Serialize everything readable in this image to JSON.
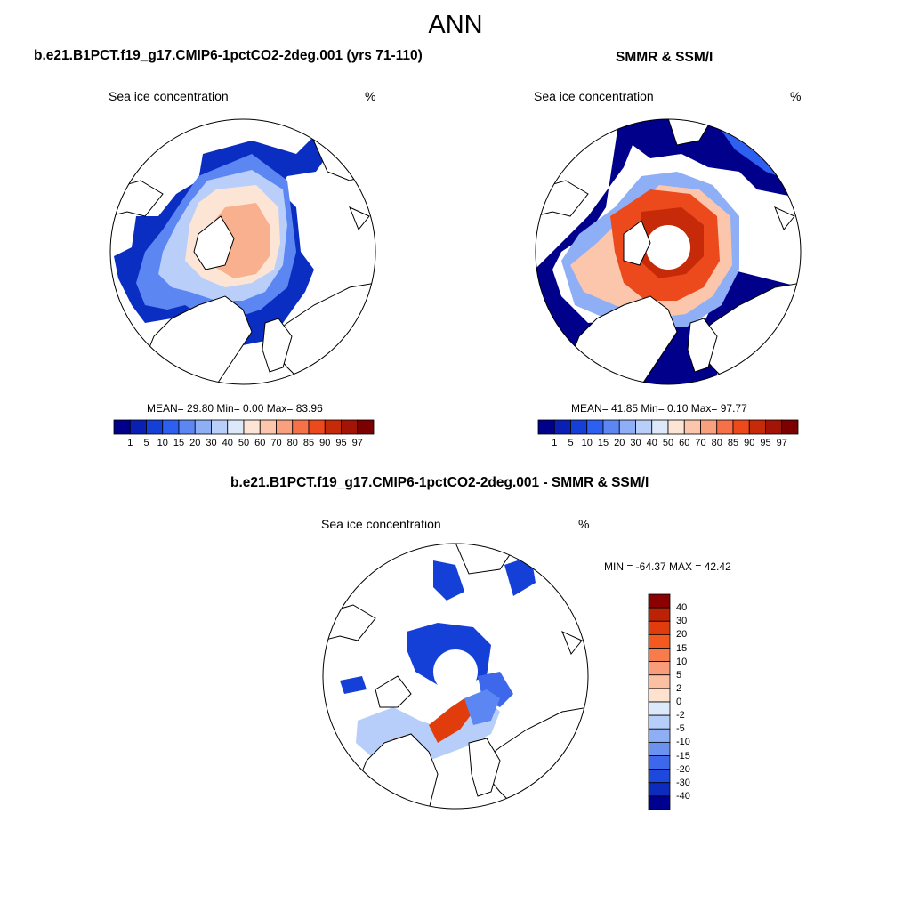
{
  "figure": {
    "title": "ANN"
  },
  "panels": [
    {
      "title": "b.e21.B1PCT.f19_g17.CMIP6-1pctCO2-2deg.001 (yrs 71-110)",
      "variable": "Sea ice concentration",
      "units": "%",
      "stats": "MEAN=  29.80  Min=   0.00  Max=  83.96"
    },
    {
      "title": "SMMR & SSM/I",
      "variable": "Sea ice concentration",
      "units": "%",
      "stats": "MEAN=  41.85  Min=   0.10  Max=  97.77"
    },
    {
      "title": "b.e21.B1PCT.f19_g17.CMIP6-1pctCO2-2deg.001 - SMMR & SSM/I",
      "variable": "Sea ice concentration",
      "units": "%",
      "stats": "MIN = -64.37 MAX =  42.42"
    }
  ],
  "colorbar_h": {
    "levels": [
      "1",
      "5",
      "10",
      "15",
      "20",
      "30",
      "40",
      "50",
      "60",
      "70",
      "80",
      "85",
      "90",
      "95",
      "97"
    ],
    "colors": [
      "#00008b",
      "#0a1fb4",
      "#1540d8",
      "#2d5ff0",
      "#5c86f2",
      "#8eaef5",
      "#b9cff9",
      "#dde9fb",
      "#fde5d6",
      "#fbc6ab",
      "#f9a07e",
      "#f77148",
      "#ec4a1c",
      "#c62a08",
      "#a31407",
      "#7d0000"
    ]
  },
  "colorbar_v": {
    "levels": [
      "40",
      "30",
      "20",
      "15",
      "10",
      "5",
      "2",
      "0",
      "-2",
      "-5",
      "-10",
      "-15",
      "-20",
      "-30",
      "-40"
    ],
    "colors": [
      "#8b0000",
      "#bb2206",
      "#e13d0c",
      "#f45a1f",
      "#f77b4b",
      "#f99c79",
      "#fbbfa2",
      "#fde2d0",
      "#dce9fb",
      "#b6cef9",
      "#8eaff5",
      "#6b92f0",
      "#3d68ec",
      "#1e48db",
      "#0d2bbd",
      "#000090"
    ]
  }
}
